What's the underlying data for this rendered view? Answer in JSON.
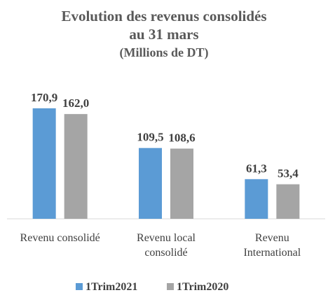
{
  "chart_data": {
    "type": "bar",
    "title": "Evolution des revenus consolidés au 31 mars",
    "subtitle": "(Millions de DT)",
    "categories": [
      "Revenu consolidé",
      "Revenu local consolidé",
      "Revenu International"
    ],
    "series": [
      {
        "name": "1Trim2021",
        "color": "#5b9bd5",
        "values": [
          170.9,
          109.5,
          61.3
        ],
        "value_labels": [
          "170,9",
          "109,5",
          "61,3"
        ]
      },
      {
        "name": "1Trim2020",
        "color": "#a5a5a5",
        "values": [
          162.0,
          108.6,
          53.4
        ],
        "value_labels": [
          "162,0",
          "108,6",
          "53,4"
        ]
      }
    ],
    "legend": "bottom"
  }
}
